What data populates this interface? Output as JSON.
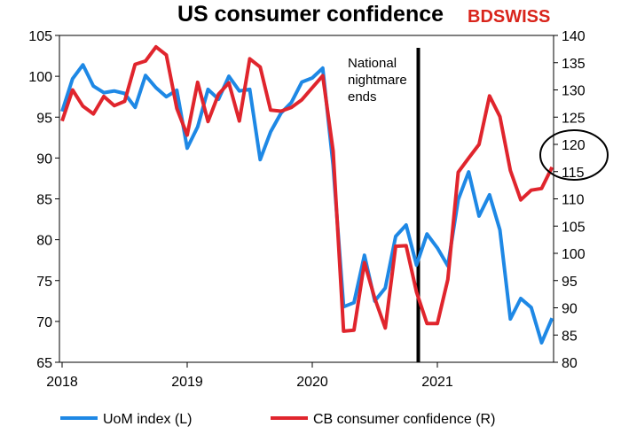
{
  "header": {
    "title": "US consumer confidence",
    "brand_prefix": "BD",
    "brand_suffix": "SWISS",
    "brand_color": "#d9251c"
  },
  "chart_data": {
    "type": "line",
    "title": "US consumer confidence",
    "x_axis": {
      "ticks": [
        "2018",
        "2019",
        "2020",
        "2021"
      ],
      "range": [
        "2018-01",
        "2021-12"
      ]
    },
    "y_left": {
      "min": 65,
      "max": 105,
      "step": 5,
      "ticks": [
        "65",
        "70",
        "75",
        "80",
        "85",
        "90",
        "95",
        "100",
        "105"
      ]
    },
    "y_right": {
      "min": 80,
      "max": 140,
      "step": 5,
      "ticks": [
        "80",
        "85",
        "90",
        "95",
        "100",
        "105",
        "110",
        "115",
        "120",
        "125",
        "130",
        "135",
        "140"
      ]
    },
    "annotation": {
      "lines": [
        "National",
        "nightmare",
        "ends"
      ],
      "date": "2020-11"
    },
    "legend_position": "bottom",
    "series": [
      {
        "name": "UoM index (L)",
        "axis": "left",
        "color": "#1e88e5",
        "x": [
          "2018-01",
          "2018-02",
          "2018-03",
          "2018-04",
          "2018-05",
          "2018-06",
          "2018-07",
          "2018-08",
          "2018-09",
          "2018-10",
          "2018-11",
          "2018-12",
          "2019-01",
          "2019-02",
          "2019-03",
          "2019-04",
          "2019-05",
          "2019-06",
          "2019-07",
          "2019-08",
          "2019-09",
          "2019-10",
          "2019-11",
          "2019-12",
          "2020-01",
          "2020-02",
          "2020-03",
          "2020-04",
          "2020-05",
          "2020-06",
          "2020-07",
          "2020-08",
          "2020-09",
          "2020-10",
          "2020-11",
          "2020-12",
          "2021-01",
          "2021-02",
          "2021-03",
          "2021-04",
          "2021-05",
          "2021-06",
          "2021-07",
          "2021-08",
          "2021-09",
          "2021-10",
          "2021-11",
          "2021-12"
        ],
        "values": [
          95.7,
          99.7,
          101.4,
          98.8,
          98.0,
          98.2,
          97.9,
          96.2,
          100.1,
          98.6,
          97.5,
          98.3,
          91.2,
          93.8,
          98.4,
          97.2,
          100.0,
          98.2,
          98.4,
          89.8,
          93.2,
          95.5,
          96.8,
          99.3,
          99.8,
          101.0,
          89.1,
          71.8,
          72.3,
          78.1,
          72.5,
          74.1,
          80.4,
          81.8,
          76.9,
          80.7,
          79.0,
          76.8,
          84.9,
          88.3,
          82.9,
          85.5,
          81.2,
          70.3,
          72.8,
          71.7,
          67.4,
          70.4
        ]
      },
      {
        "name": "CB consumer confidence (R)",
        "axis": "right",
        "color": "#e0252d",
        "x": [
          "2018-01",
          "2018-02",
          "2018-03",
          "2018-04",
          "2018-05",
          "2018-06",
          "2018-07",
          "2018-08",
          "2018-09",
          "2018-10",
          "2018-11",
          "2018-12",
          "2019-01",
          "2019-02",
          "2019-03",
          "2019-04",
          "2019-05",
          "2019-06",
          "2019-07",
          "2019-08",
          "2019-09",
          "2019-10",
          "2019-11",
          "2019-12",
          "2020-01",
          "2020-02",
          "2020-03",
          "2020-04",
          "2020-05",
          "2020-06",
          "2020-07",
          "2020-08",
          "2020-09",
          "2020-10",
          "2020-11",
          "2020-12",
          "2021-01",
          "2021-02",
          "2021-03",
          "2021-04",
          "2021-05",
          "2021-06",
          "2021-07",
          "2021-08",
          "2021-09",
          "2021-10",
          "2021-11",
          "2021-12"
        ],
        "values": [
          124.3,
          130.0,
          127.0,
          125.6,
          128.8,
          127.1,
          127.9,
          134.7,
          135.3,
          137.9,
          136.4,
          126.6,
          121.7,
          131.4,
          124.2,
          129.2,
          131.3,
          124.3,
          135.7,
          134.2,
          126.3,
          126.1,
          126.8,
          128.2,
          130.4,
          132.6,
          118.8,
          85.7,
          85.9,
          98.3,
          91.7,
          86.3,
          101.3,
          101.4,
          92.9,
          87.1,
          87.1,
          95.2,
          114.9,
          117.5,
          120.0,
          128.9,
          125.1,
          115.2,
          109.8,
          111.6,
          111.9,
          115.8
        ]
      }
    ]
  }
}
